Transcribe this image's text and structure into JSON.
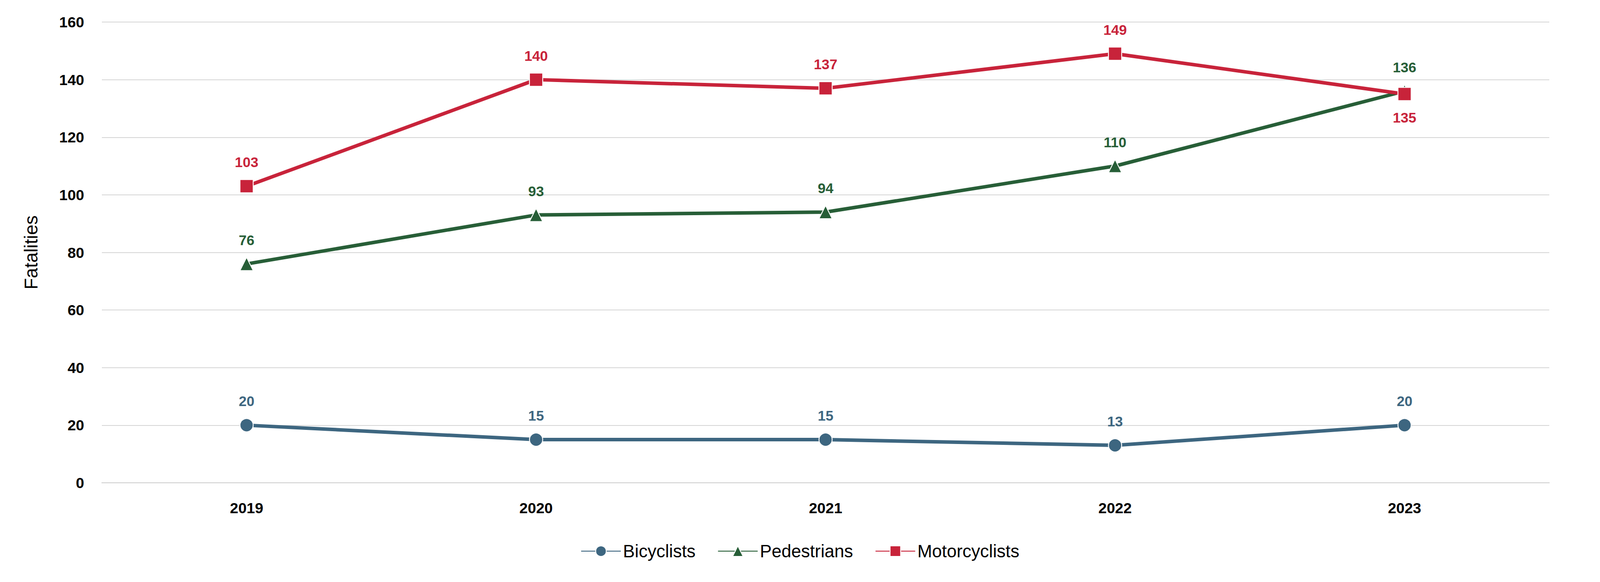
{
  "chart_data": {
    "type": "line",
    "categories": [
      "2019",
      "2020",
      "2021",
      "2022",
      "2023"
    ],
    "y_label": "Fatalities",
    "ylim": [
      0,
      160
    ],
    "yticks": [
      0,
      20,
      40,
      60,
      80,
      100,
      120,
      140,
      160
    ],
    "grid": true,
    "legend": "bottom",
    "data_labels": true,
    "series": [
      {
        "name": "Bicyclists",
        "color": "#3d6680",
        "marker": "circle",
        "values": [
          20,
          15,
          15,
          13,
          20
        ]
      },
      {
        "name": "Pedestrians",
        "color": "#275e37",
        "marker": "triangle",
        "values": [
          76,
          93,
          94,
          110,
          136
        ]
      },
      {
        "name": "Motorcyclists",
        "color": "#c8233a",
        "marker": "square",
        "values": [
          103,
          140,
          137,
          149,
          135
        ]
      }
    ]
  }
}
